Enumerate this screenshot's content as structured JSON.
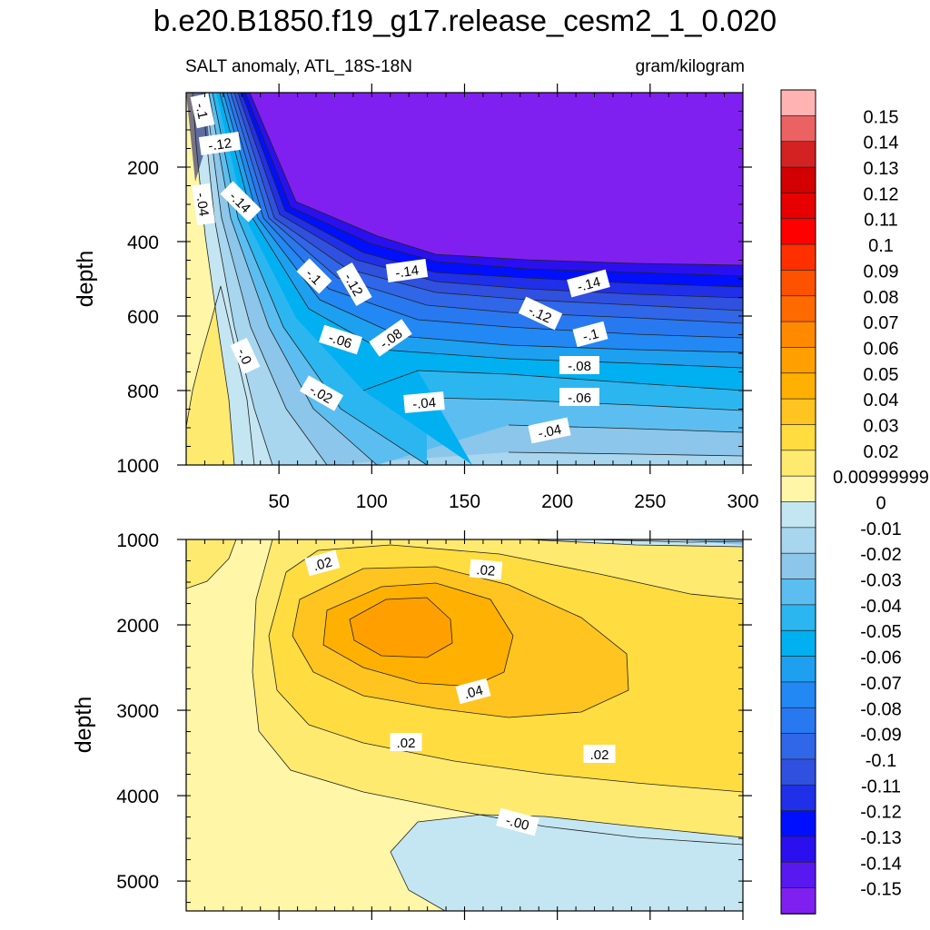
{
  "chart_data": {
    "type": "contour",
    "title": "b.e20.B1850.f19_g17.release_cesm2_1_0.020",
    "subtitle_left": "SALT anomaly, ATL_18S-18N",
    "subtitle_right": "gram/kilogram",
    "xlabel": "",
    "x_ticks": [
      "50",
      "100",
      "150",
      "200",
      "250",
      "300"
    ],
    "xlim": [
      0,
      300
    ],
    "panels": [
      {
        "name": "upper",
        "ylabel": "depth",
        "ylim": [
          1000,
          0
        ],
        "y_ticks": [
          "200",
          "400",
          "600",
          "800",
          "1000"
        ],
        "contour_labels": [
          "-.1",
          "-.12",
          "-.04",
          "-.14",
          "-.1",
          "-.12",
          "-.14",
          "-.14",
          "-.12",
          "-.1",
          "-.06",
          "-.08",
          "-.0",
          "-.08",
          "-.06",
          "-.02",
          "-.04",
          "-.04"
        ]
      },
      {
        "name": "lower",
        "ylabel": "depth",
        "ylim": [
          5350,
          1000
        ],
        "y_ticks": [
          "1000",
          "2000",
          "3000",
          "4000",
          "5000"
        ],
        "contour_labels": [
          ".02",
          ".02",
          ".04",
          ".02",
          ".02",
          "-.00"
        ]
      }
    ],
    "colorbar": {
      "labels": [
        "0.15",
        "0.14",
        "0.13",
        "0.12",
        "0.11",
        "0.1",
        "0.09",
        "0.08",
        "0.07",
        "0.06",
        "0.05",
        "0.04",
        "0.03",
        "0.02",
        "0.00999999",
        "0",
        "-0.01",
        "-0.02",
        "-0.03",
        "-0.04",
        "-0.05",
        "-0.06",
        "-0.07",
        "-0.08",
        "-0.09",
        "-0.1",
        "-0.11",
        "-0.12",
        "-0.13",
        "-0.14",
        "-0.15"
      ],
      "colors": [
        "#ffb3b3",
        "#eb6262",
        "#d42222",
        "#d20000",
        "#e60000",
        "#ff0000",
        "#ff3000",
        "#ff5200",
        "#ff6a00",
        "#ff8a00",
        "#ffa000",
        "#ffb000",
        "#ffc420",
        "#ffdc40",
        "#ffea70",
        "#fff6a8",
        "#c4e6f2",
        "#a8d6ee",
        "#8cc6ea",
        "#5cbef0",
        "#2cb6f0",
        "#00b0f0",
        "#1da0f0",
        "#2288f4",
        "#2878f0",
        "#3066e8",
        "#3050e0",
        "#2030e8",
        "#0010ff",
        "#2a10ee",
        "#5818f0",
        "#8020f0"
      ]
    }
  }
}
